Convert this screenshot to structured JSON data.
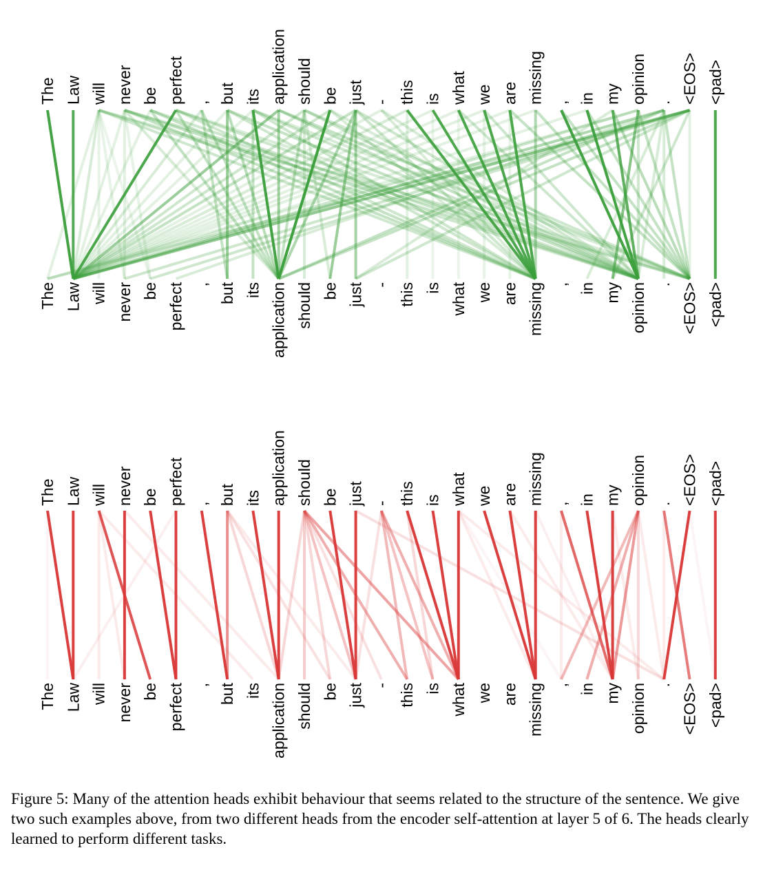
{
  "figure": {
    "tokens": [
      "The",
      "Law",
      "will",
      "never",
      "be",
      "perfect",
      ",",
      "but",
      "its",
      "application",
      "should",
      "be",
      "just",
      "-",
      "this",
      "is",
      "what",
      "we",
      "are",
      "missing",
      ",",
      "in",
      "my",
      "opinion",
      ".",
      "<EOS>",
      "<pad>"
    ],
    "caption": "Figure 5: Many of the attention heads exhibit behaviour that seems related to the structure of the sentence. We give two such examples above, from two different heads from the encoder self-attention at layer 5 of 6. The heads clearly learned to perform different tasks."
  },
  "chart_data": [
    {
      "type": "attention-lines",
      "head": 1,
      "color": "#3a9e3a",
      "edges_note": "source token index (top) -> target token index (bottom), weight 0-1",
      "edges": [
        [
          0,
          1,
          0.95
        ],
        [
          1,
          1,
          0.85
        ],
        [
          2,
          1,
          0.2
        ],
        [
          3,
          1,
          0.15
        ],
        [
          4,
          1,
          0.15
        ],
        [
          5,
          1,
          0.9
        ],
        [
          6,
          1,
          0.2
        ],
        [
          7,
          1,
          0.15
        ],
        [
          8,
          1,
          0.15
        ],
        [
          9,
          1,
          0.5
        ],
        [
          10,
          1,
          0.25
        ],
        [
          11,
          1,
          0.25
        ],
        [
          12,
          1,
          0.3
        ],
        [
          13,
          1,
          0.15
        ],
        [
          14,
          1,
          0.2
        ],
        [
          15,
          1,
          0.15
        ],
        [
          16,
          1,
          0.15
        ],
        [
          17,
          1,
          0.15
        ],
        [
          18,
          1,
          0.15
        ],
        [
          19,
          1,
          0.15
        ],
        [
          21,
          1,
          0.15
        ],
        [
          23,
          1,
          0.25
        ],
        [
          24,
          1,
          0.2
        ],
        [
          25,
          1,
          0.3
        ],
        [
          2,
          0,
          0.15
        ],
        [
          2,
          2,
          0.12
        ],
        [
          2,
          3,
          0.12
        ],
        [
          2,
          4,
          0.1
        ],
        [
          3,
          3,
          0.15
        ],
        [
          3,
          4,
          0.12
        ],
        [
          3,
          9,
          0.2
        ],
        [
          4,
          9,
          0.3
        ],
        [
          5,
          9,
          0.3
        ],
        [
          6,
          9,
          0.3
        ],
        [
          7,
          9,
          0.35
        ],
        [
          8,
          9,
          0.95
        ],
        [
          9,
          9,
          0.45
        ],
        [
          10,
          9,
          0.3
        ],
        [
          11,
          9,
          0.35
        ],
        [
          12,
          9,
          0.4
        ],
        [
          6,
          7,
          0.3
        ],
        [
          7,
          7,
          0.5
        ],
        [
          8,
          8,
          0.3
        ],
        [
          11,
          9,
          0.95
        ],
        [
          12,
          11,
          0.5
        ],
        [
          12,
          12,
          0.45
        ],
        [
          10,
          10,
          0.2
        ],
        [
          10,
          11,
          0.2
        ],
        [
          9,
          23,
          0.3
        ],
        [
          9,
          25,
          0.3
        ],
        [
          10,
          23,
          0.25
        ],
        [
          10,
          25,
          0.25
        ],
        [
          11,
          23,
          0.2
        ],
        [
          11,
          19,
          0.2
        ],
        [
          12,
          19,
          0.25
        ],
        [
          13,
          19,
          0.2
        ],
        [
          14,
          19,
          0.9
        ],
        [
          15,
          19,
          0.9
        ],
        [
          16,
          19,
          0.9
        ],
        [
          17,
          19,
          0.9
        ],
        [
          18,
          19,
          0.9
        ],
        [
          19,
          19,
          0.4
        ],
        [
          2,
          19,
          0.25
        ],
        [
          3,
          19,
          0.3
        ],
        [
          4,
          19,
          0.3
        ],
        [
          5,
          19,
          0.25
        ],
        [
          7,
          19,
          0.25
        ],
        [
          8,
          19,
          0.25
        ],
        [
          14,
          14,
          0.15
        ],
        [
          15,
          15,
          0.1
        ],
        [
          16,
          16,
          0.1
        ],
        [
          17,
          17,
          0.12
        ],
        [
          18,
          18,
          0.12
        ],
        [
          20,
          23,
          0.95
        ],
        [
          21,
          23,
          0.95
        ],
        [
          22,
          23,
          0.8
        ],
        [
          23,
          23,
          0.25
        ],
        [
          24,
          23,
          0.2
        ],
        [
          2,
          23,
          0.25
        ],
        [
          3,
          23,
          0.3
        ],
        [
          4,
          23,
          0.25
        ],
        [
          5,
          23,
          0.25
        ],
        [
          7,
          23,
          0.3
        ],
        [
          8,
          23,
          0.25
        ],
        [
          12,
          23,
          0.25
        ],
        [
          13,
          23,
          0.2
        ],
        [
          16,
          23,
          0.25
        ],
        [
          17,
          23,
          0.25
        ],
        [
          18,
          25,
          0.3
        ],
        [
          19,
          25,
          0.3
        ],
        [
          20,
          25,
          0.3
        ],
        [
          21,
          25,
          0.3
        ],
        [
          22,
          25,
          0.35
        ],
        [
          23,
          25,
          0.3
        ],
        [
          24,
          25,
          0.3
        ],
        [
          25,
          25,
          0.15
        ],
        [
          2,
          25,
          0.2
        ],
        [
          3,
          25,
          0.25
        ],
        [
          5,
          25,
          0.2
        ],
        [
          8,
          25,
          0.2
        ],
        [
          25,
          0,
          0.25
        ],
        [
          25,
          1,
          0.35
        ],
        [
          25,
          3,
          0.25
        ],
        [
          25,
          4,
          0.25
        ],
        [
          25,
          9,
          0.3
        ],
        [
          25,
          12,
          0.25
        ],
        [
          24,
          9,
          0.3
        ],
        [
          24,
          1,
          0.25
        ],
        [
          24,
          5,
          0.2
        ],
        [
          25,
          22,
          0.25
        ],
        [
          24,
          21,
          0.2
        ],
        [
          24,
          24,
          0.2
        ],
        [
          23,
          22,
          0.6
        ],
        [
          23,
          0,
          0.15
        ],
        [
          22,
          12,
          0.2
        ],
        [
          26,
          26,
          0.9
        ]
      ]
    },
    {
      "type": "attention-lines",
      "head": 2,
      "color": "#d93636",
      "edges": [
        [
          0,
          1,
          0.95
        ],
        [
          1,
          1,
          0.95
        ],
        [
          0,
          0,
          0.05
        ],
        [
          2,
          4,
          0.85
        ],
        [
          2,
          2,
          0.1
        ],
        [
          2,
          8,
          0.1
        ],
        [
          3,
          3,
          0.95
        ],
        [
          4,
          5,
          0.95
        ],
        [
          5,
          5,
          0.95
        ],
        [
          5,
          1,
          0.08
        ],
        [
          3,
          9,
          0.1
        ],
        [
          2,
          3,
          0.1
        ],
        [
          6,
          7,
          0.95
        ],
        [
          7,
          7,
          0.55
        ],
        [
          7,
          9,
          0.2
        ],
        [
          8,
          9,
          0.95
        ],
        [
          9,
          9,
          0.95
        ],
        [
          7,
          11,
          0.15
        ],
        [
          7,
          12,
          0.1
        ],
        [
          10,
          9,
          0.2
        ],
        [
          10,
          10,
          0.25
        ],
        [
          10,
          11,
          0.2
        ],
        [
          10,
          12,
          0.3
        ],
        [
          10,
          14,
          0.4
        ],
        [
          10,
          16,
          0.45
        ],
        [
          10,
          13,
          0.15
        ],
        [
          11,
          12,
          0.95
        ],
        [
          12,
          12,
          0.95
        ],
        [
          13,
          14,
          0.35
        ],
        [
          13,
          15,
          0.3
        ],
        [
          13,
          16,
          0.4
        ],
        [
          14,
          16,
          0.95
        ],
        [
          15,
          16,
          0.95
        ],
        [
          16,
          16,
          0.95
        ],
        [
          13,
          12,
          0.15
        ],
        [
          14,
          15,
          0.2
        ],
        [
          16,
          19,
          0.1
        ],
        [
          16,
          20,
          0.05
        ],
        [
          17,
          19,
          0.95
        ],
        [
          18,
          19,
          0.95
        ],
        [
          19,
          19,
          0.95
        ],
        [
          19,
          22,
          0.08
        ],
        [
          18,
          22,
          0.1
        ],
        [
          20,
          22,
          0.75
        ],
        [
          21,
          22,
          0.95
        ],
        [
          22,
          22,
          0.95
        ],
        [
          23,
          22,
          0.5
        ],
        [
          23,
          20,
          0.35
        ],
        [
          23,
          21,
          0.4
        ],
        [
          23,
          23,
          0.2
        ],
        [
          20,
          20,
          0.1
        ],
        [
          23,
          24,
          0.1
        ],
        [
          22,
          23,
          0.1
        ],
        [
          12,
          24,
          0.15
        ],
        [
          16,
          24,
          0.1
        ],
        [
          24,
          25,
          0.65
        ],
        [
          25,
          24,
          0.95
        ],
        [
          24,
          24,
          0.1
        ],
        [
          26,
          26,
          0.95
        ],
        [
          25,
          26,
          0.05
        ]
      ]
    }
  ]
}
